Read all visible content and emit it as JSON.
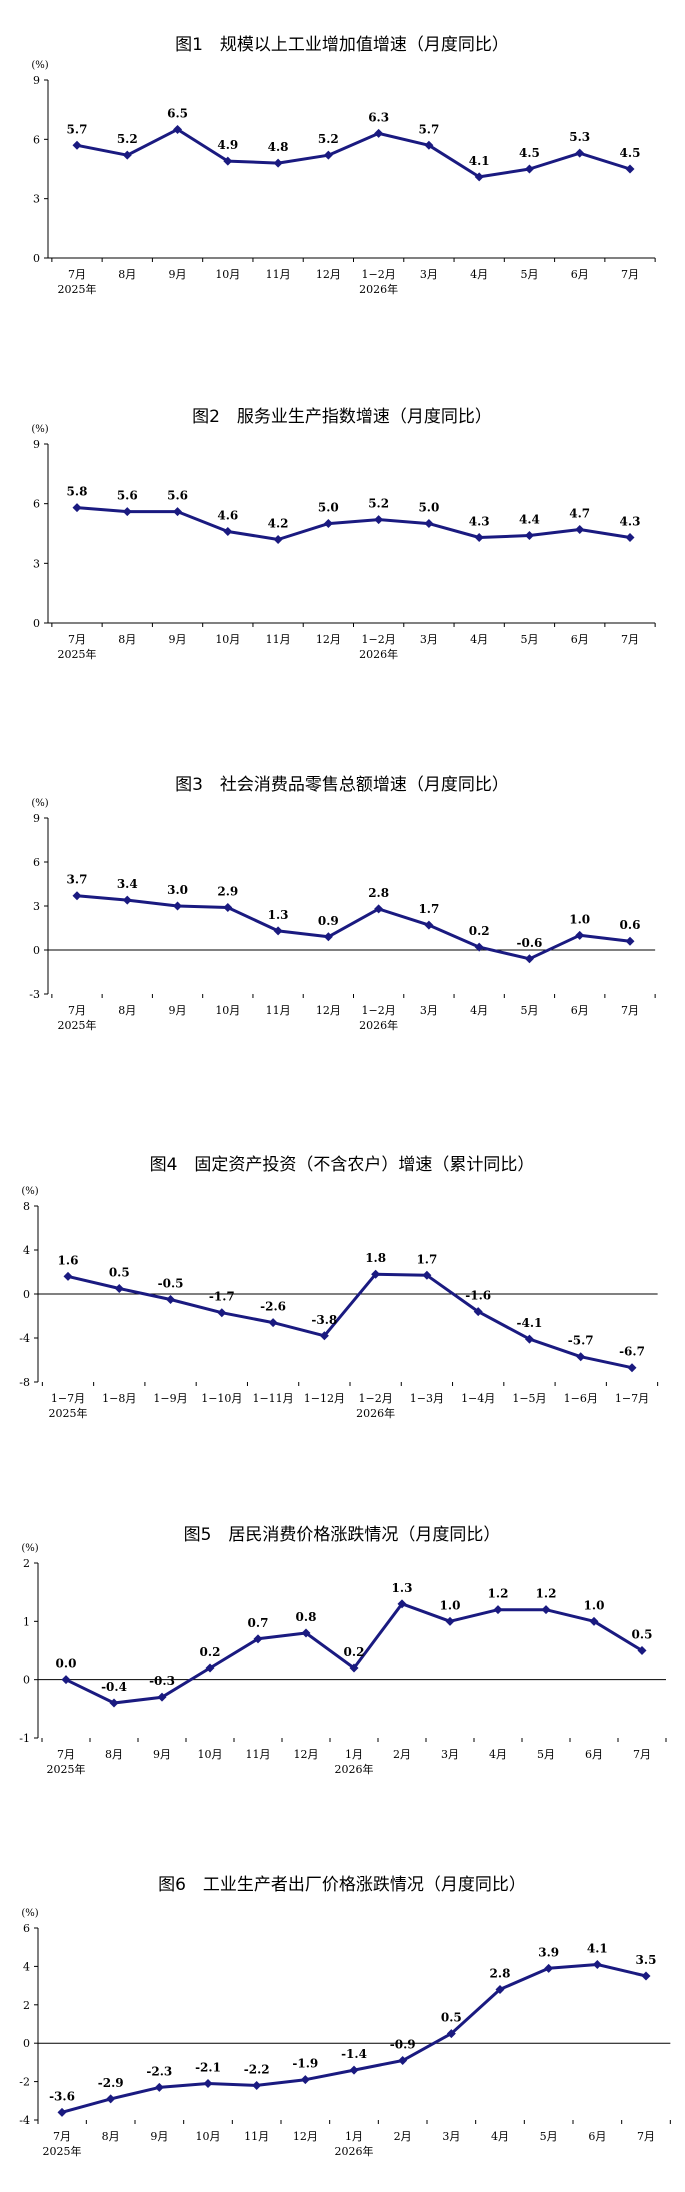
{
  "chart_data": [
    {
      "type": "line",
      "title": "图1　规模以上工业增加值增速（月度同比）",
      "unit": "(%)",
      "categories": [
        "7月",
        "8月",
        "9月",
        "10月",
        "11月",
        "12月",
        "1−2月",
        "3月",
        "4月",
        "5月",
        "6月",
        "7月"
      ],
      "year_labels": [
        "2025年",
        "",
        "",
        "",
        "",
        "",
        "2026年",
        "",
        "",
        "",
        "",
        ""
      ],
      "values": [
        5.7,
        5.2,
        6.5,
        4.9,
        4.8,
        5.2,
        6.3,
        5.7,
        4.1,
        4.5,
        5.3,
        4.5
      ],
      "value_labels": [
        "5.7",
        "5.2",
        "6.5",
        "4.9",
        "4.8",
        "5.2",
        "6.3",
        "5.7",
        "4.1",
        "4.5",
        "5.3",
        "4.5"
      ],
      "ylim": [
        0,
        9
      ],
      "yticks": [
        0,
        3,
        6,
        9
      ],
      "ytick_labels": [
        "0",
        "3",
        "6",
        "9"
      ],
      "color": "#1a1a80"
    },
    {
      "type": "line",
      "title": "图2　服务业生产指数增速（月度同比）",
      "unit": "(%)",
      "categories": [
        "7月",
        "8月",
        "9月",
        "10月",
        "11月",
        "12月",
        "1−2月",
        "3月",
        "4月",
        "5月",
        "6月",
        "7月"
      ],
      "year_labels": [
        "2025年",
        "",
        "",
        "",
        "",
        "",
        "2026年",
        "",
        "",
        "",
        "",
        ""
      ],
      "values": [
        5.8,
        5.6,
        5.6,
        4.6,
        4.2,
        5.0,
        5.2,
        5.0,
        4.3,
        4.4,
        4.7,
        4.3
      ],
      "value_labels": [
        "5.8",
        "5.6",
        "5.6",
        "4.6",
        "4.2",
        "5.0",
        "5.2",
        "5.0",
        "4.3",
        "4.4",
        "4.7",
        "4.3"
      ],
      "ylim": [
        0,
        9
      ],
      "yticks": [
        0,
        3,
        6,
        9
      ],
      "ytick_labels": [
        "0",
        "3",
        "6",
        "9"
      ],
      "color": "#1a1a80"
    },
    {
      "type": "line",
      "title": "图3　社会消费品零售总额增速（月度同比）",
      "unit": "(%)",
      "categories": [
        "7月",
        "8月",
        "9月",
        "10月",
        "11月",
        "12月",
        "1−2月",
        "3月",
        "4月",
        "5月",
        "6月",
        "7月"
      ],
      "year_labels": [
        "2025年",
        "",
        "",
        "",
        "",
        "",
        "2026年",
        "",
        "",
        "",
        "",
        ""
      ],
      "values": [
        3.7,
        3.4,
        3.0,
        2.9,
        1.3,
        0.9,
        2.8,
        1.7,
        0.2,
        -0.6,
        1.0,
        0.6
      ],
      "value_labels": [
        "3.7",
        "3.4",
        "3.0",
        "2.9",
        "1.3",
        "0.9",
        "2.8",
        "1.7",
        "0.2",
        "-0.6",
        "1.0",
        "0.6"
      ],
      "ylim": [
        -3,
        9
      ],
      "yticks": [
        -3,
        0,
        3,
        6,
        9
      ],
      "ytick_labels": [
        "-3",
        "0",
        "3",
        "6",
        "9"
      ],
      "color": "#1a1a80"
    },
    {
      "type": "line",
      "title": "图4　固定资产投资（不含农户）增速（累计同比）",
      "unit": "(%)",
      "categories": [
        "1−7月",
        "1−8月",
        "1−9月",
        "1−10月",
        "1−11月",
        "1−12月",
        "1−2月",
        "1−3月",
        "1−4月",
        "1−5月",
        "1−6月",
        "1−7月"
      ],
      "year_labels": [
        "2025年",
        "",
        "",
        "",
        "",
        "",
        "2026年",
        "",
        "",
        "",
        "",
        ""
      ],
      "values": [
        1.6,
        0.5,
        -0.5,
        -1.7,
        -2.6,
        -3.8,
        1.8,
        1.7,
        -1.6,
        -4.1,
        -5.7,
        -6.7
      ],
      "value_labels": [
        "1.6",
        "0.5",
        "-0.5",
        "-1.7",
        "-2.6",
        "-3.8",
        "1.8",
        "1.7",
        "-1.6",
        "-4.1",
        "-5.7",
        "-6.7"
      ],
      "ylim": [
        -8,
        8
      ],
      "yticks": [
        -8,
        -4,
        0,
        4,
        8
      ],
      "ytick_labels": [
        "-8",
        "-4",
        "0",
        "4",
        "8"
      ],
      "color": "#1a1a80"
    },
    {
      "type": "line",
      "title": "图5　居民消费价格涨跌情况（月度同比）",
      "unit": "(%)",
      "categories": [
        "7月",
        "8月",
        "9月",
        "10月",
        "11月",
        "12月",
        "1月",
        "2月",
        "3月",
        "4月",
        "5月",
        "6月",
        "7月"
      ],
      "year_labels": [
        "2025年",
        "",
        "",
        "",
        "",
        "",
        "2026年",
        "",
        "",
        "",
        "",
        "",
        ""
      ],
      "values": [
        0.0,
        -0.4,
        -0.3,
        0.2,
        0.7,
        0.8,
        0.2,
        1.3,
        1.0,
        1.2,
        1.2,
        1.0,
        0.5
      ],
      "value_labels": [
        "0.0",
        "-0.4",
        "-0.3",
        "0.2",
        "0.7",
        "0.8",
        "0.2",
        "1.3",
        "1.0",
        "1.2",
        "1.2",
        "1.0",
        "0.5"
      ],
      "ylim": [
        -1,
        2
      ],
      "yticks": [
        -1,
        0,
        1,
        2
      ],
      "ytick_labels": [
        "-1",
        "0",
        "1",
        "2"
      ],
      "color": "#1a1a80"
    },
    {
      "type": "line",
      "title": "图6　工业生产者出厂价格涨跌情况（月度同比）",
      "unit": "(%)",
      "categories": [
        "7月",
        "8月",
        "9月",
        "10月",
        "11月",
        "12月",
        "1月",
        "2月",
        "3月",
        "4月",
        "5月",
        "6月",
        "7月"
      ],
      "year_labels": [
        "2025年",
        "",
        "",
        "",
        "",
        "",
        "2026年",
        "",
        "",
        "",
        "",
        "",
        ""
      ],
      "values": [
        -3.6,
        -2.9,
        -2.3,
        -2.1,
        -2.2,
        -1.9,
        -1.4,
        -0.9,
        0.5,
        2.8,
        3.9,
        4.1,
        3.5
      ],
      "value_labels": [
        "-3.6",
        "-2.9",
        "-2.3",
        "-2.1",
        "-2.2",
        "-1.9",
        "-1.4",
        "-0.9",
        "0.5",
        "2.8",
        "3.9",
        "4.1",
        "3.5"
      ],
      "ylim": [
        -4,
        6
      ],
      "yticks": [
        -4,
        -2,
        0,
        2,
        4,
        6
      ],
      "ytick_labels": [
        "-4",
        "-2",
        "0",
        "2",
        "4",
        "6"
      ],
      "color": "#1a1a80"
    }
  ]
}
